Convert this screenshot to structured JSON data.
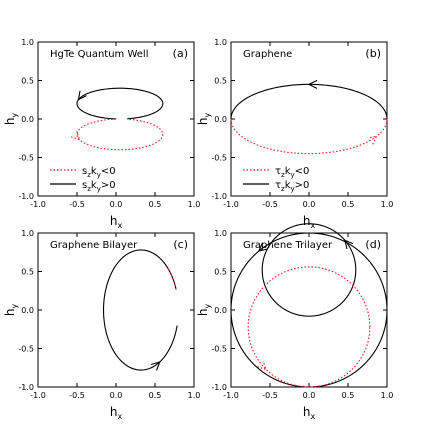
{
  "colors": {
    "positive": "#000000",
    "negative": "#e8141b"
  },
  "chart_data": [
    {
      "id": "a",
      "type": "line",
      "title": "HgTe Quantum Well",
      "panel_label": "(a)",
      "xlabel": {
        "base": "h",
        "sub": "x"
      },
      "ylabel": {
        "base": "h",
        "sub": "y"
      },
      "xlim": [
        -1.0,
        1.0
      ],
      "ylim": [
        -1.0,
        1.0
      ],
      "xticks": [
        "-1.0",
        "-0.5",
        "0.0",
        "0.5",
        "1.0"
      ],
      "yticks": [
        "1.0",
        "0.5",
        "0.0",
        "-0.5",
        "-1.0"
      ],
      "legend": [
        {
          "style": "dotted",
          "base": "s",
          "sub1": "z",
          "mid": "k",
          "sub2": "y",
          "rel": "<0"
        },
        {
          "style": "solid",
          "base": "s",
          "sub1": "z",
          "mid": "k",
          "sub2": "y",
          "rel": ">0"
        }
      ],
      "series": [
        {
          "style": "solid",
          "shape": "ellipse",
          "cx": 0.05,
          "cy": 0.2,
          "rx": 0.55,
          "ry": 0.2,
          "gap_deg": [
            265,
            280
          ],
          "arrow_deg": 165
        },
        {
          "style": "dotted",
          "shape": "ellipse",
          "cx": 0.05,
          "cy": -0.2,
          "rx": 0.55,
          "ry": 0.2,
          "gap_deg": [
            80,
            95
          ],
          "arrow_deg": 200
        }
      ]
    },
    {
      "id": "b",
      "type": "line",
      "title": "Graphene",
      "panel_label": "(b)",
      "xlabel": {
        "base": "h",
        "sub": "x"
      },
      "ylabel": {
        "base": "h",
        "sub": "y"
      },
      "xlim": [
        -1.0,
        1.0
      ],
      "ylim": [
        -1.0,
        1.0
      ],
      "xticks": [
        "-1.0",
        "-0.5",
        "0.0",
        "0.5",
        "1.0"
      ],
      "yticks": [
        "1.0",
        "0.5",
        "0.0",
        "-0.5",
        "-1.0"
      ],
      "legend": [
        {
          "style": "dotted",
          "base": "τ",
          "sub1": "z",
          "mid": "k",
          "sub2": "y",
          "rel": "<0"
        },
        {
          "style": "solid",
          "base": "τ",
          "sub1": "z",
          "mid": "k",
          "sub2": "y",
          "rel": ">0"
        }
      ],
      "series": [
        {
          "style": "solid",
          "shape": "halfellipse",
          "side": "upper",
          "cx": 0,
          "cy": 0,
          "rx": 1.0,
          "ry": 0.45,
          "arrow_deg": 90
        },
        {
          "style": "dotted",
          "shape": "halfellipse",
          "side": "lower",
          "cx": 0,
          "cy": 0,
          "rx": 1.0,
          "ry": 0.45,
          "arrow_deg": 330
        }
      ]
    },
    {
      "id": "c",
      "type": "line",
      "title": "Graphene Bilayer",
      "panel_label": "(c)",
      "xlabel": {
        "base": "h",
        "sub": "x"
      },
      "ylabel": {
        "base": "h",
        "sub": "y"
      },
      "xlim": [
        -1.0,
        1.0
      ],
      "ylim": [
        -1.0,
        1.0
      ],
      "xticks": [
        "-1.0",
        "-0.5",
        "0.0",
        "0.5",
        "1.0"
      ],
      "yticks": [
        "1.0",
        "0.5",
        "0.0",
        "-0.5",
        "-1.0"
      ],
      "legend": [],
      "series": [
        {
          "style": "solid",
          "shape": "ellipse",
          "cx": 0.32,
          "cy": 0.0,
          "rx": 0.48,
          "ry": 0.78,
          "gap_deg": [
            345,
            20
          ],
          "arrow_deg": 300
        },
        {
          "style": "dotted",
          "shape": "arc",
          "cx": 0.32,
          "cy": 0.0,
          "rx": 0.48,
          "ry": 0.78,
          "from_deg": 20,
          "to_deg": 45,
          "arrow_deg": null
        }
      ]
    },
    {
      "id": "d",
      "type": "line",
      "title": "Graphene Trilayer",
      "panel_label": "(d)",
      "xlabel": {
        "base": "h",
        "sub": "x"
      },
      "ylabel": {
        "base": "h",
        "sub": "y"
      },
      "xlim": [
        -1.0,
        1.0
      ],
      "ylim": [
        -1.0,
        1.0
      ],
      "xticks": [
        "-1.0",
        "-0.5",
        "0.0",
        "0.5",
        "1.0"
      ],
      "yticks": [
        "1.0",
        "0.5",
        "0.0",
        "-0.5",
        "-1.0"
      ],
      "legend": [],
      "series": [
        {
          "style": "solid",
          "shape": "ellipse",
          "cx": 0.0,
          "cy": 0.0,
          "rx": 1.0,
          "ry": 1.0,
          "gap_deg": null,
          "arrow_deg": 130
        },
        {
          "style": "solid",
          "shape": "ellipse",
          "cx": 0.0,
          "cy": 0.52,
          "rx": 0.6,
          "ry": 0.6,
          "gap_deg": null,
          "arrow_deg": 40
        },
        {
          "style": "dotted",
          "shape": "ellipse",
          "cx": 0.0,
          "cy": -0.22,
          "rx": 0.78,
          "ry": 0.78,
          "gap_deg": null,
          "arrow_deg": 225
        }
      ]
    }
  ]
}
